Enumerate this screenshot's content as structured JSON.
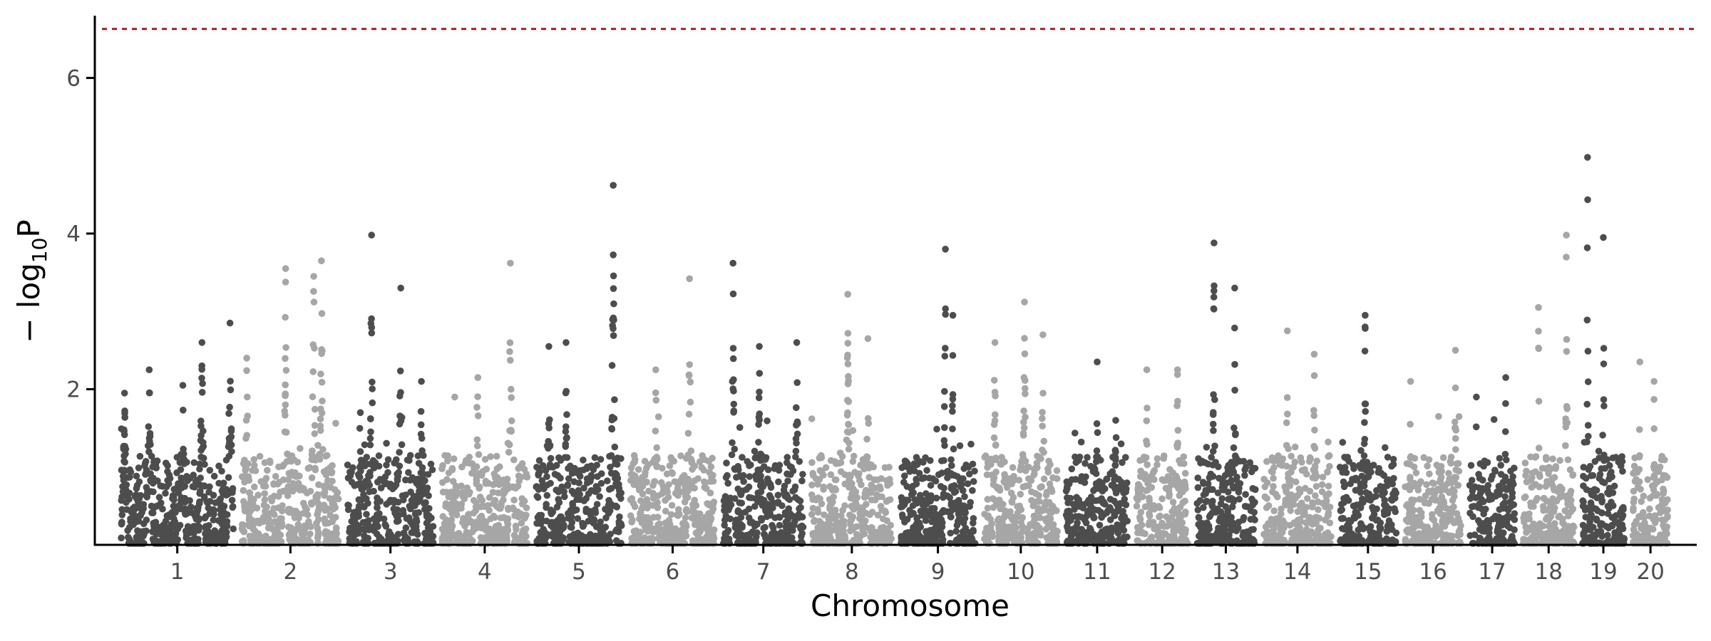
{
  "chart_data": {
    "type": "scatter",
    "subtype": "manhattan",
    "xlabel": "Chromosome",
    "ylabel_main": "− log",
    "ylabel_sub": "10",
    "ylabel_tail": "P",
    "ylim": [
      0,
      6.8
    ],
    "yticks": [
      2,
      4,
      6
    ],
    "grid": false,
    "legend": "none",
    "threshold": {
      "value": 6.63,
      "color": "#ff0000",
      "style": "dotted"
    },
    "colors": {
      "odd": "#4d4d4d",
      "even": "#a6a6a6"
    },
    "chromosomes": [
      {
        "label": "1",
        "length": 158.5,
        "peaks": [
          {
            "pos": 0.03,
            "value": 1.95
          },
          {
            "pos": 0.25,
            "value": 2.25
          },
          {
            "pos": 0.55,
            "value": 2.05
          },
          {
            "pos": 0.72,
            "value": 2.6
          },
          {
            "pos": 0.97,
            "value": 2.85
          }
        ]
      },
      {
        "label": "2",
        "length": 137.1,
        "peaks": [
          {
            "pos": 0.05,
            "value": 2.4
          },
          {
            "pos": 0.45,
            "value": 3.55
          },
          {
            "pos": 0.74,
            "value": 3.45
          },
          {
            "pos": 0.82,
            "value": 3.65
          }
        ]
      },
      {
        "label": "3",
        "length": 121.4,
        "peaks": [
          {
            "pos": 0.15,
            "value": 1.7
          },
          {
            "pos": 0.28,
            "value": 3.98
          },
          {
            "pos": 0.62,
            "value": 3.3
          },
          {
            "pos": 0.86,
            "value": 2.1
          }
        ]
      },
      {
        "label": "4",
        "length": 120.8,
        "peaks": [
          {
            "pos": 0.15,
            "value": 1.9
          },
          {
            "pos": 0.42,
            "value": 2.15
          },
          {
            "pos": 0.8,
            "value": 3.62
          }
        ]
      },
      {
        "label": "5",
        "length": 121.2,
        "peaks": [
          {
            "pos": 0.15,
            "value": 2.55
          },
          {
            "pos": 0.35,
            "value": 2.6
          },
          {
            "pos": 0.9,
            "value": 4.62
          }
        ]
      },
      {
        "label": "6",
        "length": 119.5,
        "peaks": [
          {
            "pos": 0.3,
            "value": 2.25
          },
          {
            "pos": 0.7,
            "value": 3.42
          }
        ]
      },
      {
        "label": "7",
        "length": 112.6,
        "peaks": [
          {
            "pos": 0.12,
            "value": 3.62
          },
          {
            "pos": 0.45,
            "value": 2.55
          },
          {
            "pos": 0.92,
            "value": 2.6
          }
        ]
      },
      {
        "label": "8",
        "length": 113.4,
        "peaks": [
          {
            "pos": 0.45,
            "value": 3.22
          },
          {
            "pos": 0.7,
            "value": 2.65
          }
        ]
      },
      {
        "label": "9",
        "length": 105.7,
        "peaks": [
          {
            "pos": 0.6,
            "value": 3.8
          },
          {
            "pos": 0.7,
            "value": 2.95
          }
        ]
      },
      {
        "label": "10",
        "length": 104.3,
        "peaks": [
          {
            "pos": 0.15,
            "value": 2.6
          },
          {
            "pos": 0.55,
            "value": 3.12
          },
          {
            "pos": 0.8,
            "value": 2.7
          }
        ]
      },
      {
        "label": "11",
        "length": 87.3,
        "peaks": [
          {
            "pos": 0.5,
            "value": 2.35
          },
          {
            "pos": 0.8,
            "value": 1.6
          }
        ]
      },
      {
        "label": "12",
        "length": 72.3,
        "peaks": [
          {
            "pos": 0.2,
            "value": 2.25
          },
          {
            "pos": 0.8,
            "value": 2.25
          }
        ]
      },
      {
        "label": "13",
        "length": 83.4,
        "peaks": [
          {
            "pos": 0.3,
            "value": 3.88
          },
          {
            "pos": 0.65,
            "value": 3.3
          }
        ]
      },
      {
        "label": "14",
        "length": 94.8,
        "peaks": [
          {
            "pos": 0.35,
            "value": 2.75
          },
          {
            "pos": 0.75,
            "value": 2.45
          }
        ]
      },
      {
        "label": "15",
        "length": 80.4,
        "peaks": [
          {
            "pos": 0.45,
            "value": 2.95
          },
          {
            "pos": 0.8,
            "value": 1.25
          }
        ]
      },
      {
        "label": "16",
        "length": 79.2,
        "peaks": [
          {
            "pos": 0.1,
            "value": 2.1
          },
          {
            "pos": 0.6,
            "value": 1.65
          },
          {
            "pos": 0.9,
            "value": 2.5
          }
        ]
      },
      {
        "label": "17",
        "length": 63.8,
        "peaks": [
          {
            "pos": 0.15,
            "value": 1.9
          },
          {
            "pos": 0.8,
            "value": 2.15
          }
        ]
      },
      {
        "label": "18",
        "length": 71.6,
        "peaks": [
          {
            "pos": 0.3,
            "value": 3.05
          },
          {
            "pos": 0.85,
            "value": 3.98
          }
        ]
      },
      {
        "label": "19",
        "length": 58.9,
        "peaks": [
          {
            "pos": 0.12,
            "value": 4.98
          },
          {
            "pos": 0.5,
            "value": 3.95
          }
        ]
      },
      {
        "label": "20",
        "length": 50.1,
        "peaks": [
          {
            "pos": 0.2,
            "value": 2.35
          },
          {
            "pos": 0.6,
            "value": 2.1
          }
        ]
      }
    ]
  }
}
